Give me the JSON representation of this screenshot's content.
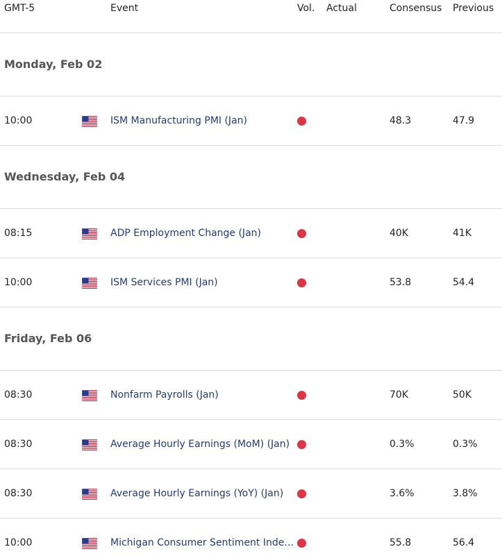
{
  "colors": {
    "high_volatility": "#dc3545",
    "event_text": "#233a78",
    "row_border": "#d9d9d9"
  },
  "header": {
    "timezone": "GMT-5",
    "event": "Event",
    "vol": "Vol.",
    "actual": "Actual",
    "consensus": "Consensus",
    "previous": "Previous"
  },
  "days": [
    {
      "label": "Monday, Feb 02"
    },
    {
      "label": "Wednesday, Feb 04"
    },
    {
      "label": "Friday, Feb 06"
    }
  ],
  "events": [
    {
      "time": "10:00",
      "flag": "us-flag-icon",
      "name": "ISM Manufacturing PMI (Jan)",
      "volatility": "high",
      "actual": "",
      "consensus": "48.3",
      "previous": "47.9"
    },
    {
      "time": "08:15",
      "flag": "us-flag-icon",
      "name": "ADP Employment Change (Jan)",
      "volatility": "high",
      "actual": "",
      "consensus": "40K",
      "previous": "41K"
    },
    {
      "time": "10:00",
      "flag": "us-flag-icon",
      "name": "ISM Services PMI (Jan)",
      "volatility": "high",
      "actual": "",
      "consensus": "53.8",
      "previous": "54.4"
    },
    {
      "time": "08:30",
      "flag": "us-flag-icon",
      "name": "Nonfarm Payrolls (Jan)",
      "volatility": "high",
      "actual": "",
      "consensus": "70K",
      "previous": "50K"
    },
    {
      "time": "08:30",
      "flag": "us-flag-icon",
      "name": "Average Hourly Earnings (MoM) (Jan)",
      "volatility": "high",
      "actual": "",
      "consensus": "0.3%",
      "previous": "0.3%"
    },
    {
      "time": "08:30",
      "flag": "us-flag-icon",
      "name": "Average Hourly Earnings (YoY) (Jan)",
      "volatility": "high",
      "actual": "",
      "consensus": "3.6%",
      "previous": "3.8%"
    },
    {
      "time": "10:00",
      "flag": "us-flag-icon",
      "name": "Michigan Consumer Sentiment Index...",
      "volatility": "high",
      "actual": "",
      "consensus": "55.8",
      "previous": "56.4"
    }
  ]
}
